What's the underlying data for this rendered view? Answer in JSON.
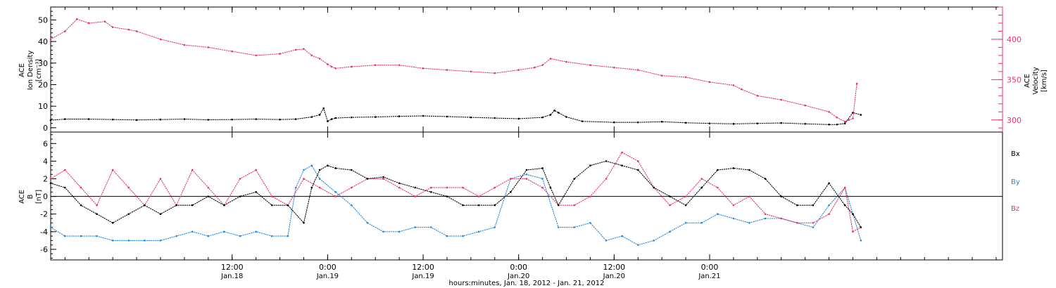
{
  "chart_data": [
    {
      "type": "scatter",
      "panel": "top",
      "xlabel": "hours:minutes, Jan. 18, 2012 - Jan. 21, 2012",
      "left_ylabel": [
        "ACE",
        "Ion Density",
        "[cm⁻³]"
      ],
      "right_ylabel": [
        "ACE",
        "Velocity",
        "[km/s]"
      ],
      "x_unit": "hours since 00:00 Jan.18, 2012",
      "xlim": [
        -10.8,
        108.8
      ],
      "ylim_left": [
        -2,
        56
      ],
      "ylim_right": [
        285,
        440
      ],
      "yticks_left": [
        0,
        10,
        20,
        30,
        40,
        50
      ],
      "yticks_right": [
        300,
        350,
        400
      ],
      "right_axis_color": "#e8336a",
      "series": [
        {
          "name": "",
          "axis": "left",
          "color": "#000000",
          "x": [
            -10.8,
            -9,
            -6,
            -3,
            0,
            3,
            6,
            9,
            12,
            15,
            18,
            20,
            22,
            23,
            23.5,
            24,
            24.5,
            25,
            27,
            30,
            33,
            36,
            39,
            42,
            45,
            48,
            51,
            52,
            52.5,
            53,
            54,
            56,
            60,
            63,
            66,
            69,
            72,
            75,
            78,
            81,
            84,
            87,
            88,
            89,
            90,
            91
          ],
          "y": [
            3.5,
            4,
            4,
            3.8,
            3.6,
            3.8,
            4,
            3.7,
            3.8,
            4,
            3.8,
            4,
            5,
            6,
            9,
            3,
            4,
            4.5,
            4.8,
            5,
            5.3,
            5.5,
            5.2,
            4.8,
            4.5,
            4.2,
            4.8,
            6,
            8,
            7,
            5,
            3,
            2.5,
            2.5,
            2.8,
            2.3,
            2,
            1.8,
            2,
            2.2,
            1.8,
            1.5,
            1.5,
            2,
            7,
            6
          ]
        },
        {
          "name": "",
          "axis": "right",
          "color": "#e8336a",
          "x": [
            -10.8,
            -9,
            -7.5,
            -6,
            -4,
            -3,
            -1,
            0,
            3,
            6,
            9,
            12,
            15,
            18,
            20,
            21,
            22,
            23,
            24,
            24.5,
            25,
            27,
            30,
            33,
            36,
            39,
            42,
            45,
            48,
            50,
            51,
            52,
            54,
            57,
            60,
            63,
            66,
            69,
            72,
            75,
            76,
            78,
            81,
            84,
            87,
            88,
            89,
            89.5,
            90,
            90.5
          ],
          "y": [
            400,
            410,
            425,
            420,
            422,
            415,
            412,
            410,
            400,
            393,
            390,
            385,
            380,
            382,
            387,
            388,
            380,
            376,
            369,
            366,
            364,
            366,
            368,
            368,
            364,
            362,
            360,
            358,
            362,
            365,
            368,
            376,
            372,
            368,
            365,
            362,
            355,
            353,
            347,
            343,
            338,
            330,
            325,
            318,
            310,
            303,
            298,
            300,
            302,
            345
          ]
        }
      ]
    },
    {
      "type": "scatter",
      "panel": "bottom",
      "xlabel": "hours:minutes, Jan. 18, 2012 - Jan. 21, 2012",
      "left_ylabel": [
        "ACE",
        "B",
        "[nT]"
      ],
      "x_unit": "hours since 00:00 Jan.18, 2012",
      "xlim": [
        -10.8,
        108.8
      ],
      "ylim": [
        -7.2,
        7.3
      ],
      "yticks": [
        -6,
        -4,
        -2,
        0,
        2,
        4,
        6
      ],
      "zero_line": true,
      "legend_placement": "right",
      "series": [
        {
          "name": "Bx",
          "color": "#000000",
          "x": [
            -10.8,
            -9,
            -7,
            -5,
            -3,
            -1,
            1,
            3,
            5,
            7,
            9,
            11,
            13,
            15,
            17,
            19,
            21,
            22,
            23,
            24,
            25,
            27,
            29,
            31,
            33,
            35,
            37,
            39,
            41,
            43,
            45,
            47,
            49,
            51,
            52,
            53,
            55,
            57,
            59,
            61,
            63,
            65,
            67,
            69,
            71,
            73,
            75,
            77,
            79,
            81,
            83,
            85,
            87,
            89,
            90,
            91
          ],
          "y": [
            1.5,
            1,
            -1,
            -2,
            -3,
            -2,
            -1,
            -2,
            -1,
            -1,
            0,
            -1,
            0,
            0.5,
            -1,
            -1,
            -3,
            1,
            3,
            3.5,
            3.2,
            3,
            2,
            2.2,
            1.5,
            1,
            0.5,
            0,
            -1,
            -1,
            -1,
            0.5,
            3,
            3.2,
            1,
            -1,
            2,
            3.5,
            4,
            3.5,
            3,
            1,
            0,
            -1,
            1,
            3,
            3.2,
            3,
            2,
            0,
            -1,
            -1,
            1.5,
            -1,
            -2,
            -3.5
          ]
        },
        {
          "name": "By",
          "color": "#1e88e5",
          "x": [
            -10.8,
            -9,
            -7,
            -5,
            -3,
            -1,
            1,
            3,
            5,
            7,
            9,
            11,
            13,
            15,
            17,
            19,
            20,
            21,
            22,
            23,
            25,
            27,
            29,
            31,
            33,
            35,
            37,
            39,
            41,
            43,
            45,
            47,
            49,
            51,
            53,
            55,
            57,
            59,
            61,
            63,
            65,
            67,
            69,
            71,
            73,
            75,
            77,
            79,
            81,
            83,
            85,
            87,
            89,
            90,
            91
          ],
          "y": [
            -3.5,
            -4.5,
            -4.5,
            -4.5,
            -5,
            -5,
            -5,
            -5,
            -4.5,
            -4,
            -4.5,
            -4,
            -4.5,
            -4,
            -4.5,
            -4.5,
            1,
            3,
            3.5,
            2,
            0.5,
            -1,
            -3,
            -4,
            -4,
            -3.5,
            -3.5,
            -4.5,
            -4.5,
            -4,
            -3.5,
            2,
            2.5,
            2,
            -3.5,
            -3.5,
            -3,
            -5,
            -4.5,
            -5.5,
            -5,
            -4,
            -3,
            -3,
            -2,
            -2.5,
            -3,
            -2.5,
            -2.5,
            -3,
            -3.5,
            -1,
            1,
            -2,
            -5
          ]
        },
        {
          "name": "Bz",
          "color": "#e8336a",
          "x": [
            -10.8,
            -9,
            -7,
            -5,
            -3,
            -1,
            1,
            3,
            5,
            7,
            9,
            11,
            13,
            15,
            17,
            19,
            21,
            23,
            25,
            27,
            29,
            31,
            33,
            35,
            37,
            39,
            41,
            43,
            45,
            47,
            49,
            51,
            53,
            55,
            57,
            59,
            61,
            63,
            65,
            67,
            69,
            71,
            73,
            75,
            77,
            79,
            81,
            83,
            85,
            87,
            89,
            90,
            91
          ],
          "y": [
            2,
            3,
            1,
            -1,
            3,
            1,
            -1,
            2,
            -1,
            3,
            1,
            -1,
            2,
            3,
            0,
            -1,
            2,
            1,
            0,
            1,
            2,
            2,
            1,
            0,
            1,
            1,
            1,
            0,
            1,
            2,
            2,
            1,
            -1,
            -1,
            0,
            2,
            5,
            4,
            1,
            -1,
            0,
            2,
            1,
            -1,
            0,
            -2,
            -2.5,
            -3,
            -3,
            -2,
            1,
            -4,
            -3.5
          ]
        }
      ]
    }
  ],
  "xticks": [
    {
      "x": 12,
      "time": "12:00",
      "date": "Jan.18"
    },
    {
      "x": 24,
      "time": "0:00",
      "date": "Jan.19"
    },
    {
      "x": 36,
      "time": "12:00",
      "date": "Jan.19"
    },
    {
      "x": 48,
      "time": "0:00",
      "date": "Jan.20"
    },
    {
      "x": 60,
      "time": "12:00",
      "date": "Jan.20"
    },
    {
      "x": 72,
      "time": "0:00",
      "date": "Jan.21"
    }
  ],
  "legend_labels": {
    "bx": "Bx",
    "by": "By",
    "bz": "Bz"
  },
  "colors": {
    "black": "#000000",
    "pink": "#e8336a",
    "blue": "#1e88e5"
  }
}
